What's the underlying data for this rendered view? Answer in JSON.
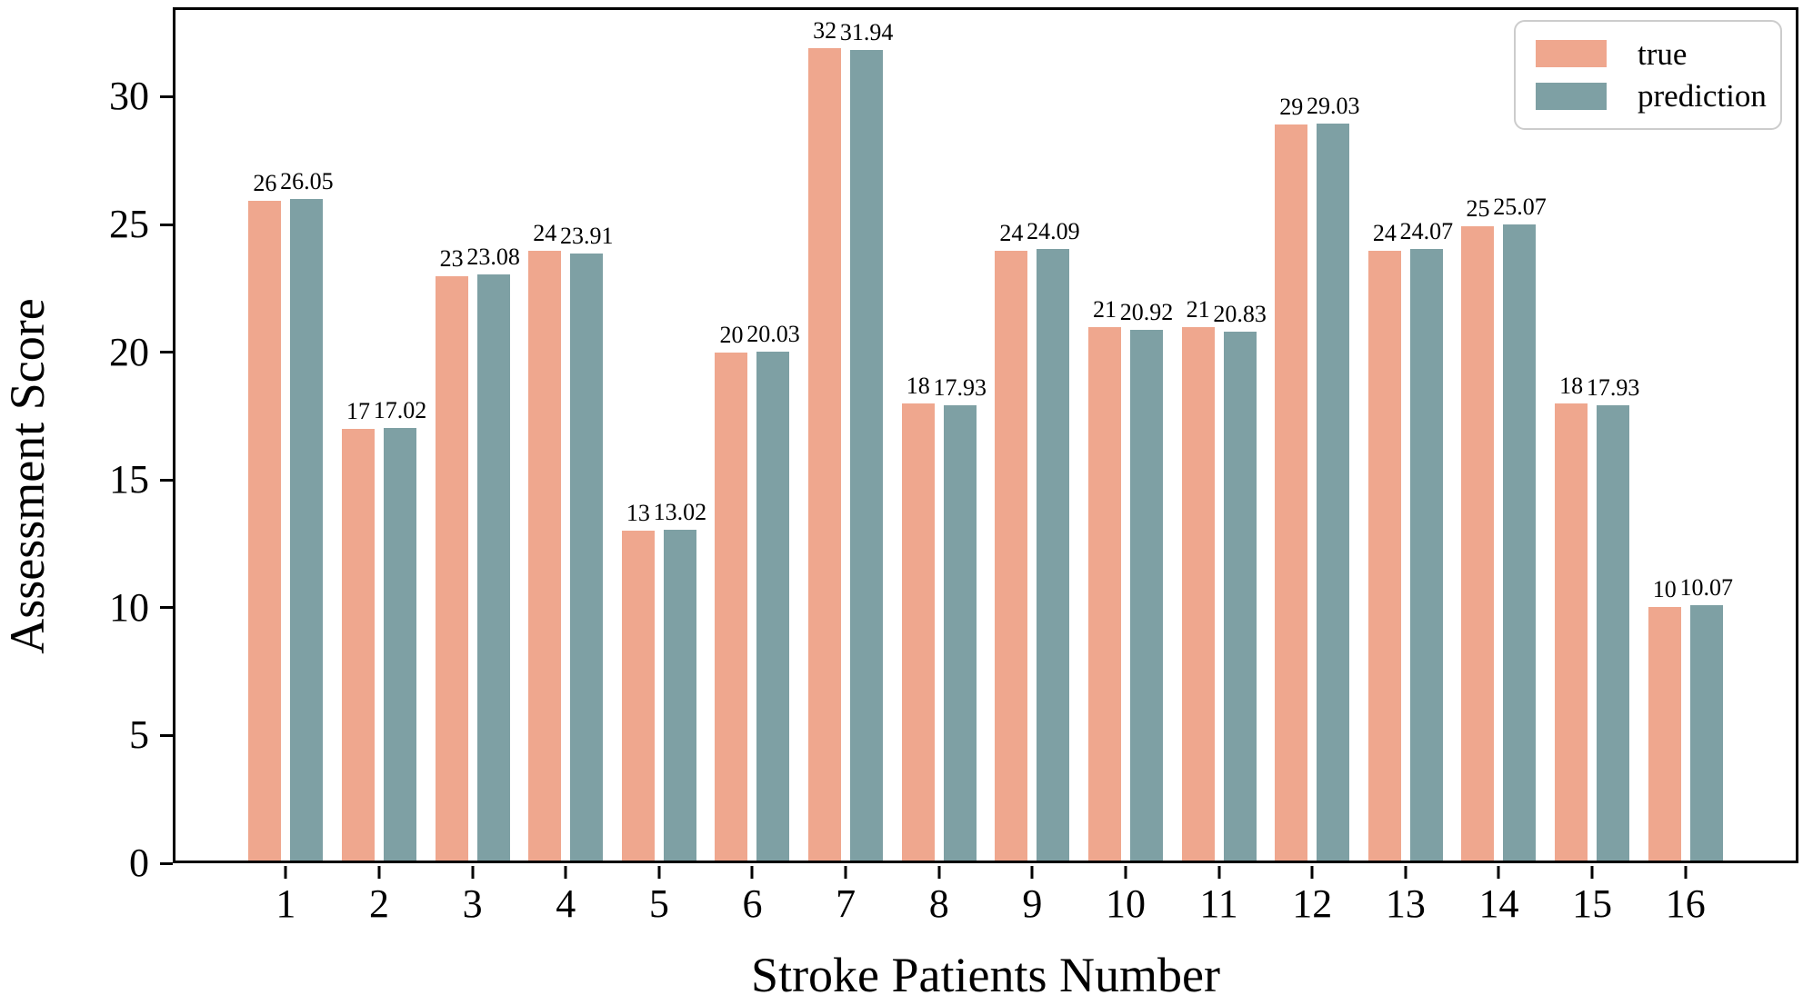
{
  "chart_data": {
    "type": "bar",
    "title": "",
    "xlabel": "Stroke Patients Number",
    "ylabel": "Assessment Score",
    "categories": [
      "1",
      "2",
      "3",
      "4",
      "5",
      "6",
      "7",
      "8",
      "9",
      "10",
      "11",
      "12",
      "13",
      "14",
      "15",
      "16"
    ],
    "series": [
      {
        "name": "true",
        "color": "#EFA78E",
        "values": [
          26,
          17,
          23,
          24,
          13,
          20,
          32,
          18,
          24,
          21,
          21,
          29,
          24,
          25,
          18,
          10
        ],
        "labels": [
          "26",
          "17",
          "23",
          "24",
          "13",
          "20",
          "32",
          "18",
          "24",
          "21",
          "21",
          "29",
          "24",
          "25",
          "18",
          "10"
        ]
      },
      {
        "name": "prediction",
        "color": "#7EA0A4",
        "values": [
          26.05,
          17.02,
          23.08,
          23.91,
          13.02,
          20.03,
          31.94,
          17.93,
          24.09,
          20.92,
          20.83,
          29.03,
          24.07,
          25.07,
          17.93,
          10.07
        ],
        "labels": [
          "26.05",
          "17.02",
          "23.08",
          "23.91",
          "13.02",
          "20.03",
          "31.94",
          "17.93",
          "24.09",
          "20.92",
          "20.83",
          "29.03",
          "24.07",
          "25.07",
          "17.93",
          "10.07"
        ]
      }
    ],
    "ylim": [
      0,
      33.5
    ],
    "yticks": [
      0,
      5,
      10,
      15,
      20,
      25,
      30
    ],
    "grid": false,
    "legend": {
      "position": "top-right",
      "entries": [
        "true",
        "prediction"
      ]
    },
    "axis_color": "#000000",
    "text_color": "#000000",
    "background_color": "#ffffff"
  }
}
